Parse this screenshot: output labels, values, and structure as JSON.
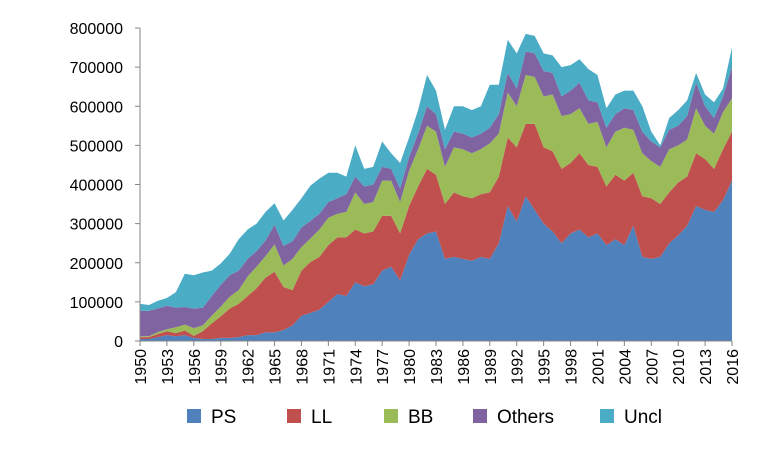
{
  "chart_data": {
    "type": "area",
    "stacked": true,
    "x": [
      1950,
      1951,
      1952,
      1953,
      1954,
      1955,
      1956,
      1957,
      1958,
      1959,
      1960,
      1961,
      1962,
      1963,
      1964,
      1965,
      1966,
      1967,
      1968,
      1969,
      1970,
      1971,
      1972,
      1973,
      1974,
      1975,
      1976,
      1977,
      1978,
      1979,
      1980,
      1981,
      1982,
      1983,
      1984,
      1985,
      1986,
      1987,
      1988,
      1989,
      1990,
      1991,
      1992,
      1993,
      1994,
      1995,
      1996,
      1997,
      1998,
      1999,
      2000,
      2001,
      2002,
      2003,
      2004,
      2005,
      2006,
      2007,
      2008,
      2009,
      2010,
      2011,
      2012,
      2013,
      2014,
      2015,
      2016
    ],
    "x_tick_labels": [
      "1950",
      "1953",
      "1956",
      "1959",
      "1962",
      "1965",
      "1968",
      "1971",
      "1974",
      "1977",
      "1980",
      "1983",
      "1986",
      "1989",
      "1992",
      "1995",
      "1998",
      "2001",
      "2004",
      "2007",
      "2010",
      "2013",
      "2016"
    ],
    "y_tick_labels": [
      "0",
      "100000",
      "200000",
      "300000",
      "400000",
      "500000",
      "600000",
      "700000",
      "800000"
    ],
    "ylim": [
      0,
      800000
    ],
    "xlabel": "",
    "ylabel": "",
    "title": "",
    "grid": false,
    "legend_position": "bottom",
    "series": [
      {
        "name": "PS",
        "color": "#4F81BD",
        "values": [
          5000,
          5000,
          10000,
          15000,
          12000,
          15000,
          8000,
          5000,
          5000,
          8000,
          8000,
          10000,
          15000,
          15000,
          22000,
          22000,
          28000,
          40000,
          65000,
          72000,
          80000,
          100000,
          120000,
          115000,
          150000,
          140000,
          145000,
          180000,
          190000,
          155000,
          220000,
          260000,
          275000,
          280000,
          210000,
          215000,
          210000,
          205000,
          215000,
          210000,
          250000,
          345000,
          305000,
          370000,
          335000,
          300000,
          280000,
          250000,
          275000,
          285000,
          265000,
          275000,
          245000,
          260000,
          245000,
          295000,
          215000,
          210000,
          215000,
          250000,
          270000,
          295000,
          345000,
          335000,
          330000,
          360000,
          410000
        ]
      },
      {
        "name": "LL",
        "color": "#C0504D",
        "values": [
          5000,
          5000,
          8000,
          10000,
          8000,
          12000,
          5000,
          20000,
          40000,
          55000,
          75000,
          85000,
          100000,
          120000,
          140000,
          155000,
          110000,
          90000,
          115000,
          130000,
          135000,
          145000,
          145000,
          150000,
          135000,
          135000,
          135000,
          140000,
          130000,
          120000,
          125000,
          135000,
          165000,
          145000,
          140000,
          165000,
          160000,
          160000,
          160000,
          170000,
          170000,
          175000,
          190000,
          185000,
          220000,
          195000,
          205000,
          190000,
          180000,
          195000,
          185000,
          170000,
          150000,
          165000,
          165000,
          135000,
          155000,
          155000,
          135000,
          130000,
          135000,
          125000,
          135000,
          130000,
          110000,
          130000,
          125000
        ]
      },
      {
        "name": "BB",
        "color": "#9BBB59",
        "values": [
          2000,
          2000,
          5000,
          5000,
          15000,
          15000,
          20000,
          15000,
          20000,
          25000,
          30000,
          35000,
          50000,
          55000,
          55000,
          70000,
          55000,
          80000,
          60000,
          60000,
          70000,
          70000,
          60000,
          65000,
          95000,
          75000,
          75000,
          90000,
          90000,
          80000,
          90000,
          95000,
          110000,
          110000,
          95000,
          115000,
          120000,
          115000,
          115000,
          125000,
          110000,
          115000,
          105000,
          125000,
          120000,
          130000,
          145000,
          135000,
          125000,
          115000,
          105000,
          115000,
          100000,
          110000,
          135000,
          110000,
          110000,
          95000,
          95000,
          110000,
          95000,
          95000,
          115000,
          85000,
          90000,
          95000,
          85000
        ]
      },
      {
        "name": "Others",
        "color": "#8064A2",
        "values": [
          65000,
          65000,
          60000,
          60000,
          50000,
          45000,
          50000,
          45000,
          50000,
          55000,
          55000,
          50000,
          45000,
          40000,
          40000,
          50000,
          50000,
          45000,
          50000,
          45000,
          40000,
          40000,
          40000,
          45000,
          40000,
          45000,
          45000,
          35000,
          30000,
          35000,
          35000,
          40000,
          50000,
          45000,
          45000,
          40000,
          40000,
          40000,
          40000,
          40000,
          50000,
          50000,
          45000,
          60000,
          60000,
          65000,
          55000,
          50000,
          60000,
          65000,
          60000,
          50000,
          50000,
          45000,
          50000,
          50000,
          55000,
          50000,
          50000,
          50000,
          50000,
          60000,
          65000,
          50000,
          40000,
          40000,
          80000
        ]
      },
      {
        "name": "Uncl",
        "color": "#4BACC6",
        "values": [
          18000,
          15000,
          20000,
          20000,
          40000,
          85000,
          85000,
          90000,
          65000,
          55000,
          55000,
          80000,
          75000,
          70000,
          73000,
          55000,
          65000,
          80000,
          75000,
          90000,
          90000,
          75000,
          65000,
          45000,
          80000,
          45000,
          45000,
          65000,
          40000,
          65000,
          50000,
          60000,
          80000,
          60000,
          50000,
          65000,
          70000,
          70000,
          70000,
          110000,
          75000,
          85000,
          90000,
          45000,
          45000,
          45000,
          45000,
          75000,
          65000,
          60000,
          80000,
          70000,
          50000,
          50000,
          45000,
          50000,
          65000,
          25000,
          5000,
          30000,
          40000,
          40000,
          25000,
          30000,
          40000,
          20000,
          50000
        ]
      }
    ]
  }
}
